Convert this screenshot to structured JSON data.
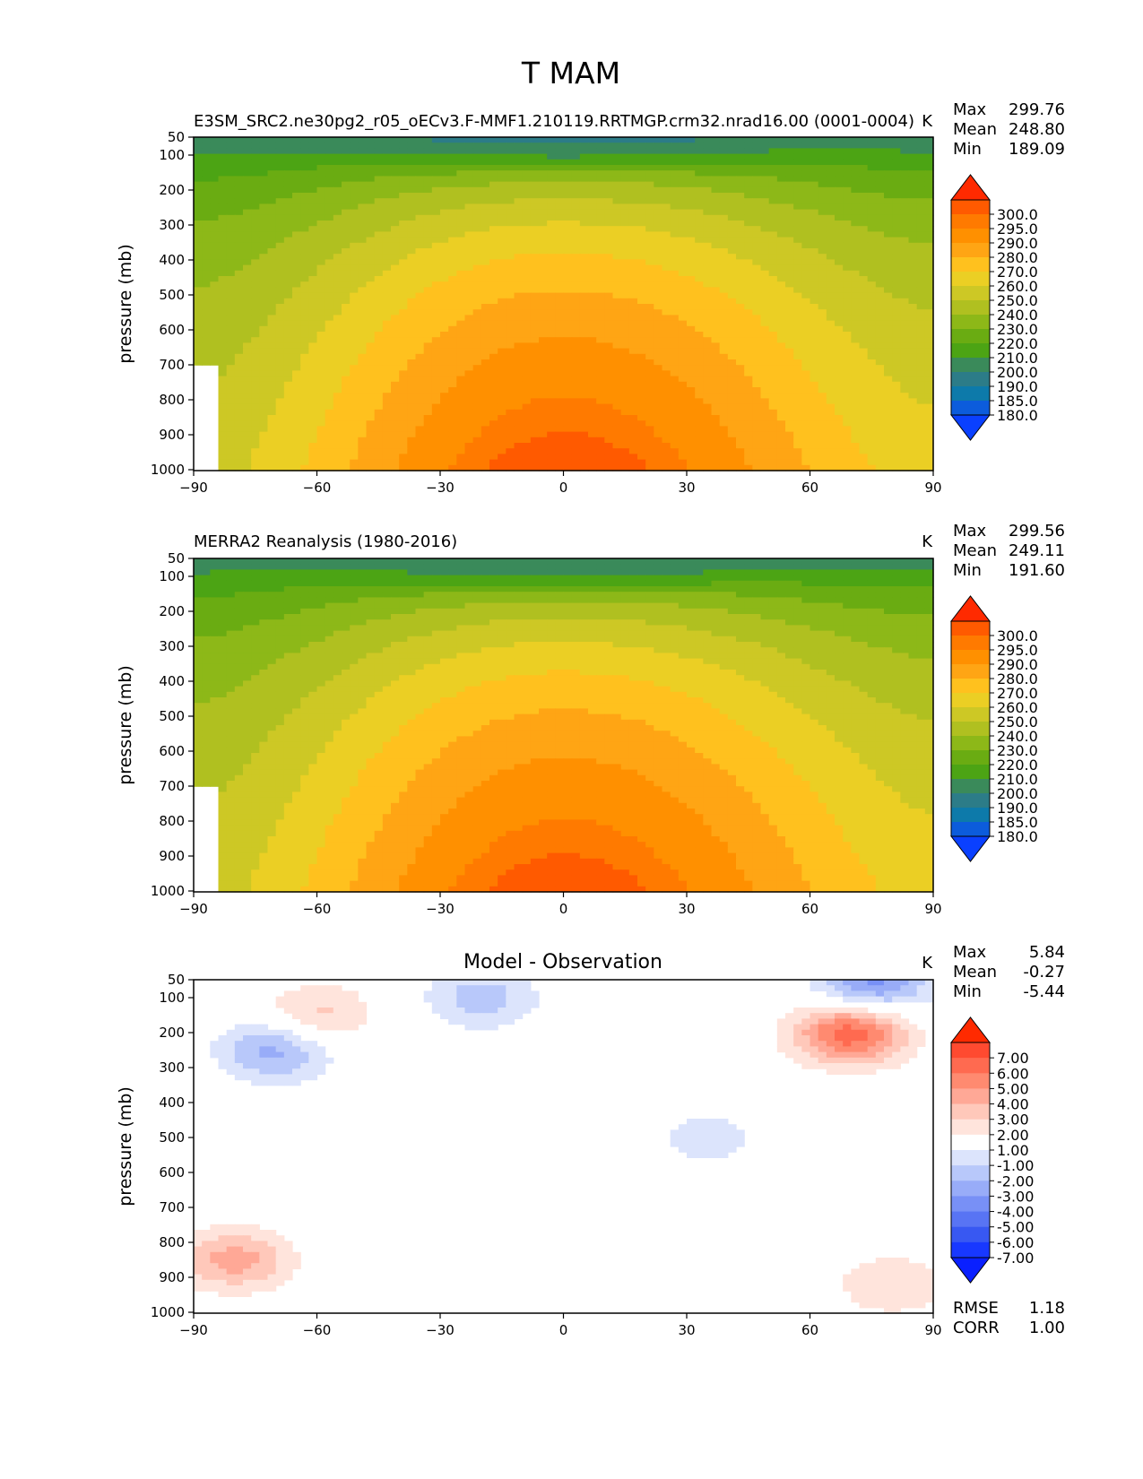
{
  "figure_title": "T MAM",
  "chart_data": [
    {
      "type": "heatmap",
      "title": "E3SM_SRC2.ne30pg2_r05_oECv3.F-MMF1.210119.RRTMGP.crm32.nrad16.00 (0001-0004)",
      "units": "K",
      "xlabel": "",
      "ylabel": "pressure (mb)",
      "xlim": [
        -90,
        90
      ],
      "ylim": [
        50,
        1000
      ],
      "xticks": [
        "−90",
        "−60",
        "−30",
        "0",
        "30",
        "60",
        "90"
      ],
      "yticks": [
        "50",
        "100",
        "200",
        "300",
        "400",
        "500",
        "600",
        "700",
        "800",
        "900",
        "1000"
      ],
      "stats": [
        {
          "label": "Max",
          "value": "299.76"
        },
        {
          "label": "Mean",
          "value": "248.80"
        },
        {
          "label": "Min",
          "value": "189.09"
        }
      ],
      "colorbar": {
        "labels": [
          "300.0",
          "295.0",
          "290.0",
          "280.0",
          "270.0",
          "260.0",
          "250.0",
          "240.0",
          "230.0",
          "220.0",
          "210.0",
          "200.0",
          "190.0",
          "185.0",
          "180.0"
        ],
        "colors": [
          "#ff2a00",
          "#ff5a00",
          "#ff7a00",
          "#ff9000",
          "#ffa514",
          "#ffc11e",
          "#ebcf24",
          "#cdc825",
          "#b0c020",
          "#8db818",
          "#6aac12",
          "#4ca414",
          "#3a8a5a",
          "#2c7c88",
          "#0d7aaa",
          "#0c5cdc",
          "#0a40ff"
        ],
        "extend": "both"
      },
      "profile": {
        "top": 190,
        "equator": 299.76,
        "pole_south": 245,
        "pole_north": 255,
        "bias": 0
      }
    },
    {
      "type": "heatmap",
      "title": "MERRA2 Reanalysis (1980-2016)",
      "units": "K",
      "xlabel": "",
      "ylabel": "pressure (mb)",
      "xlim": [
        -90,
        90
      ],
      "ylim": [
        50,
        1000
      ],
      "xticks": [
        "−90",
        "−60",
        "−30",
        "0",
        "30",
        "60",
        "90"
      ],
      "yticks": [
        "50",
        "100",
        "200",
        "300",
        "400",
        "500",
        "600",
        "700",
        "800",
        "900",
        "1000"
      ],
      "stats": [
        {
          "label": "Max",
          "value": "299.56"
        },
        {
          "label": "Mean",
          "value": "249.11"
        },
        {
          "label": "Min",
          "value": "191.60"
        }
      ],
      "colorbar": {
        "labels": [
          "300.0",
          "295.0",
          "290.0",
          "280.0",
          "270.0",
          "260.0",
          "250.0",
          "240.0",
          "230.0",
          "220.0",
          "210.0",
          "200.0",
          "190.0",
          "185.0",
          "180.0"
        ],
        "colors": [
          "#ff2a00",
          "#ff5a00",
          "#ff7a00",
          "#ff9000",
          "#ffa514",
          "#ffc11e",
          "#ebcf24",
          "#cdc825",
          "#b0c020",
          "#8db818",
          "#6aac12",
          "#4ca414",
          "#3a8a5a",
          "#2c7c88",
          "#0d7aaa",
          "#0c5cdc",
          "#0a40ff"
        ],
        "extend": "both"
      },
      "profile": {
        "top": 192,
        "equator": 299.56,
        "pole_south": 245,
        "pole_north": 256,
        "bias": 0
      }
    },
    {
      "type": "heatmap",
      "title": "Model - Observation",
      "units": "K",
      "xlabel": "",
      "ylabel": "pressure (mb)",
      "xlim": [
        -90,
        90
      ],
      "ylim": [
        50,
        1000
      ],
      "xticks": [
        "−90",
        "−60",
        "−30",
        "0",
        "30",
        "60",
        "90"
      ],
      "yticks": [
        "50",
        "100",
        "200",
        "300",
        "400",
        "500",
        "600",
        "700",
        "800",
        "900",
        "1000"
      ],
      "stats": [
        {
          "label": "Max",
          "value": "5.84"
        },
        {
          "label": "Mean",
          "value": "-0.27"
        },
        {
          "label": "Min",
          "value": "-5.44"
        }
      ],
      "extra_stats": [
        {
          "label": "RMSE",
          "value": "1.18"
        },
        {
          "label": "CORR",
          "value": "1.00"
        }
      ],
      "colorbar": {
        "labels": [
          "7.00",
          "6.00",
          "5.00",
          "4.00",
          "3.00",
          "2.00",
          "1.00",
          "-1.00",
          "-2.00",
          "-3.00",
          "-4.00",
          "-5.00",
          "-6.00",
          "-7.00"
        ],
        "colors": [
          "#ff2a00",
          "#ff4a30",
          "#ff6a50",
          "#ff8a70",
          "#ffa896",
          "#ffc8ba",
          "#ffe4dc",
          "#ffffff",
          "#dce4fc",
          "#b8c8fa",
          "#98acf8",
          "#7890f6",
          "#5874f4",
          "#3858f2",
          "#1838ff",
          "#0a20ff"
        ],
        "extend": "both"
      },
      "anomalies": [
        {
          "lat": -60,
          "p": 150,
          "value": 2.5
        },
        {
          "lat": -70,
          "p": 250,
          "value": -3.5
        },
        {
          "lat": -20,
          "p": 100,
          "value": -2.5
        },
        {
          "lat": 75,
          "p": 60,
          "value": -4.5
        },
        {
          "lat": 70,
          "p": 200,
          "value": 5.8
        },
        {
          "lat": -80,
          "p": 850,
          "value": 3.5
        },
        {
          "lat": 35,
          "p": 500,
          "value": -1.5
        },
        {
          "lat": 80,
          "p": 920,
          "value": 2.0
        }
      ]
    }
  ]
}
